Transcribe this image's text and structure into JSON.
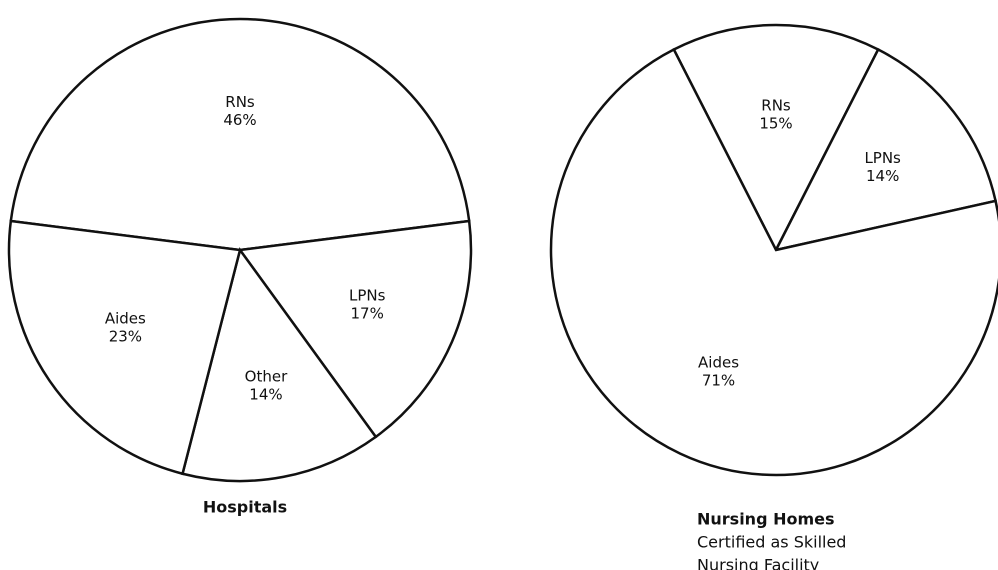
{
  "chart_data": [
    {
      "type": "pie",
      "title": "Hospitals",
      "categories": [
        "RNs",
        "LPNs",
        "Other",
        "Aides"
      ],
      "values": [
        46,
        17,
        14,
        23
      ],
      "value_labels": [
        "46%",
        "17%",
        "14%",
        "23%"
      ],
      "color": "#ffffff"
    },
    {
      "type": "pie",
      "title": "Nursing Homes",
      "subtitle": [
        "Certified as Skilled",
        "Nursing Facility"
      ],
      "categories": [
        "RNs",
        "LPNs",
        "Aides"
      ],
      "values": [
        15,
        14,
        71
      ],
      "value_labels": [
        "15%",
        "14%",
        "71%"
      ],
      "color": "#ffffff"
    }
  ]
}
